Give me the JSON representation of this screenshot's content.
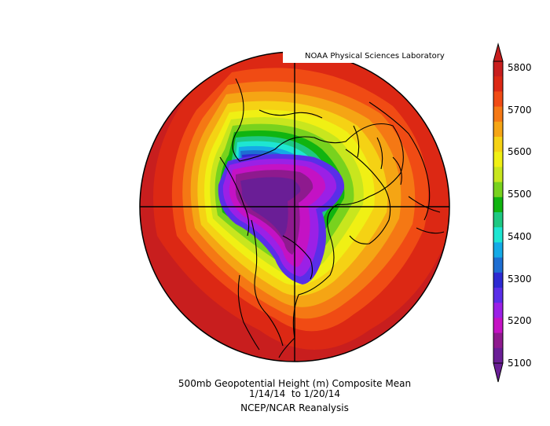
{
  "credit": "NOAA Physical Sciences Laboratory",
  "caption": {
    "line1": "500mb Geopotential Height (m) Composite Mean",
    "line2": "1/14/14  to 1/20/14",
    "line3": "NCEP/NCAR Reanalysis"
  },
  "colorbar": {
    "labels": [
      "5800",
      "5700",
      "5600",
      "5500",
      "5400",
      "5300",
      "5200",
      "5100"
    ],
    "colors": [
      "#6a1e96",
      "#8e1a8e",
      "#c412c4",
      "#9b20e6",
      "#5a2ee8",
      "#2d2ad2",
      "#1e6ed2",
      "#14aae6",
      "#1ee6d2",
      "#1ec882",
      "#10b410",
      "#78d21e",
      "#c8e61e",
      "#f0f014",
      "#f5d214",
      "#f5a514",
      "#f57814",
      "#f04b14",
      "#dc2814",
      "#c81e1e"
    ]
  }
}
